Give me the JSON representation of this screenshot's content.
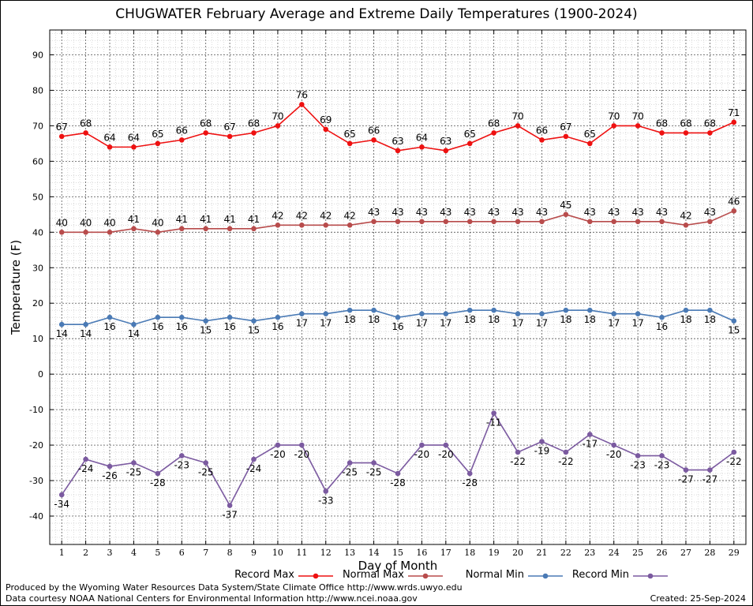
{
  "chart_data": {
    "type": "line",
    "title": "CHUGWATER February Average and Extreme Daily Temperatures (1900-2024)",
    "xlabel": "Day of Month",
    "ylabel": "Temperature (F)",
    "x": [
      1,
      2,
      3,
      4,
      5,
      6,
      7,
      8,
      9,
      10,
      11,
      12,
      13,
      14,
      15,
      16,
      17,
      18,
      19,
      20,
      21,
      22,
      23,
      24,
      25,
      26,
      27,
      28,
      29
    ],
    "xlim": [
      0.5,
      29.5
    ],
    "ylim": [
      -48,
      97
    ],
    "yticks": [
      -40,
      -30,
      -20,
      -10,
      0,
      10,
      20,
      30,
      40,
      50,
      60,
      70,
      80,
      90
    ],
    "grid": true,
    "legend_position": "bottom",
    "series": [
      {
        "name": "Record Max",
        "color": "#ee1111",
        "label_position": "above",
        "values": [
          67,
          68,
          64,
          64,
          65,
          66,
          68,
          67,
          68,
          70,
          76,
          69,
          65,
          66,
          63,
          64,
          63,
          65,
          68,
          70,
          66,
          67,
          65,
          70,
          70,
          68,
          68,
          68,
          71
        ]
      },
      {
        "name": "Normal Max",
        "color": "#b84c4c",
        "label_position": "above",
        "values": [
          40,
          40,
          40,
          41,
          40,
          41,
          41,
          41,
          41,
          42,
          42,
          42,
          42,
          43,
          43,
          43,
          43,
          43,
          43,
          43,
          43,
          45,
          43,
          43,
          43,
          43,
          42,
          43,
          46
        ]
      },
      {
        "name": "Normal Min",
        "color": "#4a7ab5",
        "label_position": "below",
        "values": [
          14,
          14,
          16,
          14,
          16,
          16,
          15,
          16,
          15,
          16,
          17,
          17,
          18,
          18,
          16,
          17,
          17,
          18,
          18,
          17,
          17,
          18,
          18,
          17,
          17,
          16,
          18,
          18,
          15
        ]
      },
      {
        "name": "Record Min",
        "color": "#7b5aa0",
        "label_position": "below",
        "values": [
          -34,
          -24,
          -26,
          -25,
          -28,
          -23,
          -25,
          -37,
          -24,
          -20,
          -20,
          -33,
          -25,
          -25,
          -28,
          -20,
          -20,
          -28,
          -11,
          -22,
          -19,
          -22,
          -17,
          -20,
          -23,
          -23,
          -27,
          -27,
          -22
        ]
      }
    ]
  },
  "legend_order": [
    "Record Max",
    "Normal Max",
    "Normal Min",
    "Record Min"
  ],
  "footer": {
    "produced_by": "Produced by the Wyoming Water Resources Data System/State Climate Office http://www.wrds.uwyo.edu",
    "data_courtesy": "Data courtesy NOAA National Centers for Environmental Information http://www.ncei.noaa.gov",
    "created": "Created: 25-Sep-2024"
  }
}
